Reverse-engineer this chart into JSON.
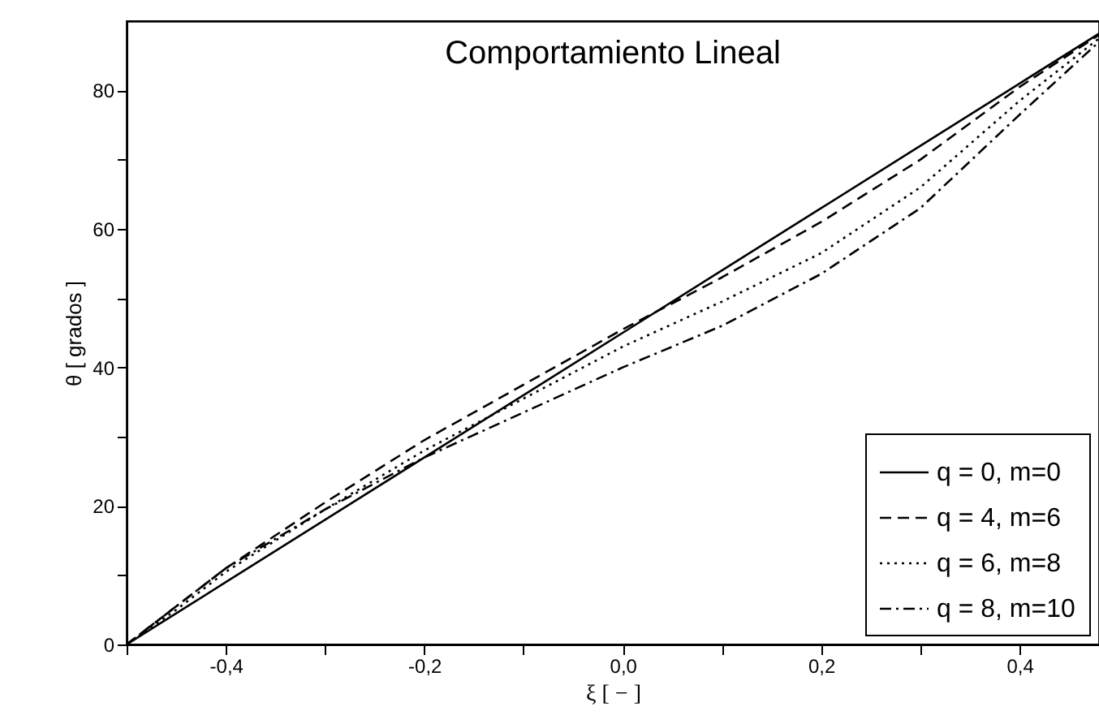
{
  "chart_data": {
    "type": "line",
    "title": "Comportamiento Lineal",
    "xlabel": "ξ [ − ]",
    "ylabel": "θ [ grados ]",
    "x": [
      -0.5,
      -0.45,
      -0.4,
      -0.3,
      -0.2,
      -0.1,
      0,
      0.1,
      0.2,
      0.3,
      0.4,
      0.48
    ],
    "series": [
      {
        "name": "q = 0, m=0",
        "color": "#000000",
        "line_style": "solid",
        "values": [
          0,
          4.5,
          9,
          18,
          27,
          36,
          45,
          54,
          63,
          72,
          81,
          88.2
        ]
      },
      {
        "name": "q = 4, m=6",
        "color": "#000000",
        "line_style": "dashed",
        "values": [
          0,
          5.5,
          11,
          20.5,
          29.5,
          37.5,
          45.5,
          53,
          61,
          70,
          80.5,
          88
        ]
      },
      {
        "name": "q = 6, m=8",
        "color": "#000000",
        "line_style": "dotted",
        "values": [
          0,
          5,
          10.5,
          19.5,
          28,
          35.5,
          43,
          49.5,
          56.5,
          66,
          78.5,
          87.5
        ]
      },
      {
        "name": "q = 8, m=10",
        "color": "#000000",
        "line_style": "dashdot",
        "values": [
          0,
          5.5,
          11,
          19.5,
          27,
          33.5,
          40,
          46,
          53.5,
          63,
          76.5,
          87
        ]
      }
    ],
    "xlim": [
      -0.5,
      0.48
    ],
    "ylim": [
      0,
      90
    ],
    "xticks": [
      {
        "value": -0.5,
        "label": null
      },
      {
        "value": -0.4,
        "label": "-0,4"
      },
      {
        "value": -0.3,
        "label": null
      },
      {
        "value": -0.2,
        "label": "-0,2"
      },
      {
        "value": -0.1,
        "label": null
      },
      {
        "value": 0,
        "label": "0,0"
      },
      {
        "value": 0.1,
        "label": null
      },
      {
        "value": 0.2,
        "label": "0,2"
      },
      {
        "value": 0.3,
        "label": null
      },
      {
        "value": 0.4,
        "label": "0,4"
      }
    ],
    "yticks": [
      0,
      {
        "value": 10,
        "label": null
      },
      20,
      {
        "value": 30,
        "label": null
      },
      40,
      {
        "value": 50,
        "label": null
      },
      60,
      {
        "value": 70,
        "label": null
      },
      80
    ],
    "grid": false,
    "legend": "bottom right",
    "marker": "none"
  }
}
